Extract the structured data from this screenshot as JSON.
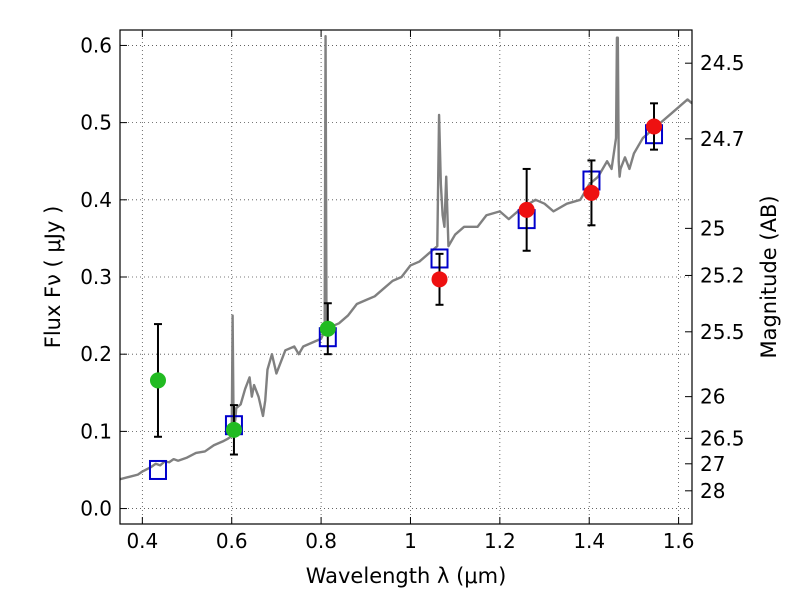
{
  "chart_data": {
    "type": "scatter",
    "title": "",
    "xlabel": "Wavelength  λ (μm)",
    "ylabel": "Flux  Fν ( μJy )",
    "ylabel_right": "Magnitude (AB)",
    "xlim": [
      0.35,
      1.63
    ],
    "ylim": [
      -0.02,
      0.62
    ],
    "grid": true,
    "x_ticks": [
      {
        "value": 0.4,
        "label": "0.4"
      },
      {
        "value": 0.6,
        "label": "0.6"
      },
      {
        "value": 0.8,
        "label": "0.8"
      },
      {
        "value": 1.0,
        "label": "1"
      },
      {
        "value": 1.2,
        "label": "1.2"
      },
      {
        "value": 1.4,
        "label": "1.4"
      },
      {
        "value": 1.6,
        "label": "1.6"
      }
    ],
    "y_ticks": [
      {
        "value": 0.0,
        "label": "0.0"
      },
      {
        "value": 0.1,
        "label": "0.1"
      },
      {
        "value": 0.2,
        "label": "0.2"
      },
      {
        "value": 0.3,
        "label": "0.3"
      },
      {
        "value": 0.4,
        "label": "0.4"
      },
      {
        "value": 0.5,
        "label": "0.5"
      },
      {
        "value": 0.6,
        "label": "0.6"
      }
    ],
    "right_ticks": [
      {
        "flux": 0.577,
        "label": "24.5"
      },
      {
        "flux": 0.479,
        "label": "24.7"
      },
      {
        "flux": 0.363,
        "label": "25"
      },
      {
        "flux": 0.302,
        "label": "25.2"
      },
      {
        "flux": 0.229,
        "label": "25.5"
      },
      {
        "flux": 0.145,
        "label": "26"
      },
      {
        "flux": 0.091,
        "label": "26.5"
      },
      {
        "flux": 0.058,
        "label": "27"
      },
      {
        "flux": 0.023,
        "label": "28"
      }
    ],
    "model_spectrum": {
      "color": "#808080",
      "x": [
        0.35,
        0.37,
        0.39,
        0.4,
        0.42,
        0.43,
        0.44,
        0.45,
        0.46,
        0.47,
        0.48,
        0.5,
        0.52,
        0.54,
        0.56,
        0.58,
        0.59,
        0.6,
        0.602,
        0.604,
        0.606,
        0.608,
        0.61,
        0.62,
        0.63,
        0.64,
        0.645,
        0.65,
        0.66,
        0.67,
        0.675,
        0.68,
        0.69,
        0.7,
        0.72,
        0.74,
        0.75,
        0.76,
        0.78,
        0.8,
        0.808,
        0.81,
        0.812,
        0.814,
        0.816,
        0.82,
        0.84,
        0.86,
        0.88,
        0.9,
        0.92,
        0.94,
        0.96,
        0.98,
        1.0,
        1.02,
        1.04,
        1.05,
        1.06,
        1.064,
        1.068,
        1.072,
        1.076,
        1.08,
        1.085,
        1.09,
        1.095,
        1.1,
        1.12,
        1.15,
        1.17,
        1.2,
        1.22,
        1.25,
        1.28,
        1.3,
        1.32,
        1.35,
        1.38,
        1.4,
        1.42,
        1.44,
        1.45,
        1.455,
        1.46,
        1.462,
        1.464,
        1.466,
        1.468,
        1.47,
        1.48,
        1.49,
        1.5,
        1.52,
        1.54,
        1.56,
        1.58,
        1.6,
        1.62,
        1.63
      ],
      "y": [
        0.038,
        0.041,
        0.044,
        0.048,
        0.054,
        0.058,
        0.056,
        0.061,
        0.06,
        0.064,
        0.062,
        0.066,
        0.072,
        0.074,
        0.082,
        0.087,
        0.09,
        0.094,
        0.25,
        0.12,
        0.11,
        0.115,
        0.13,
        0.135,
        0.155,
        0.17,
        0.145,
        0.16,
        0.145,
        0.12,
        0.14,
        0.18,
        0.2,
        0.175,
        0.205,
        0.21,
        0.2,
        0.21,
        0.215,
        0.22,
        0.23,
        0.612,
        0.25,
        0.24,
        0.23,
        0.235,
        0.24,
        0.25,
        0.265,
        0.27,
        0.275,
        0.285,
        0.295,
        0.3,
        0.315,
        0.32,
        0.33,
        0.335,
        0.34,
        0.51,
        0.42,
        0.38,
        0.365,
        0.43,
        0.34,
        0.345,
        0.35,
        0.355,
        0.365,
        0.365,
        0.38,
        0.385,
        0.375,
        0.39,
        0.4,
        0.395,
        0.385,
        0.395,
        0.4,
        0.42,
        0.43,
        0.45,
        0.44,
        0.46,
        0.48,
        0.61,
        0.61,
        0.45,
        0.43,
        0.44,
        0.455,
        0.44,
        0.46,
        0.48,
        0.49,
        0.5,
        0.51,
        0.52,
        0.53,
        0.525
      ]
    },
    "series": [
      {
        "name": "",
        "marker": "square-open",
        "color": "#0000cc",
        "points": [
          {
            "x": 0.435,
            "y": 0.05
          },
          {
            "x": 0.605,
            "y": 0.108
          },
          {
            "x": 0.815,
            "y": 0.222
          },
          {
            "x": 1.065,
            "y": 0.324
          },
          {
            "x": 1.26,
            "y": 0.375
          },
          {
            "x": 1.405,
            "y": 0.425
          },
          {
            "x": 1.545,
            "y": 0.485
          }
        ]
      },
      {
        "name": "",
        "marker": "circle-filled",
        "color": "#22bb22",
        "points": [
          {
            "x": 0.435,
            "y": 0.166,
            "err": 0.073
          },
          {
            "x": 0.605,
            "y": 0.102,
            "err": 0.032
          },
          {
            "x": 0.815,
            "y": 0.233,
            "err": 0.033
          }
        ]
      },
      {
        "name": "",
        "marker": "circle-filled",
        "color": "#ee1111",
        "points": [
          {
            "x": 1.065,
            "y": 0.297,
            "err": 0.033
          },
          {
            "x": 1.26,
            "y": 0.387,
            "err": 0.053
          },
          {
            "x": 1.405,
            "y": 0.409,
            "err": 0.042
          },
          {
            "x": 1.545,
            "y": 0.495,
            "err": 0.03
          }
        ]
      }
    ]
  }
}
